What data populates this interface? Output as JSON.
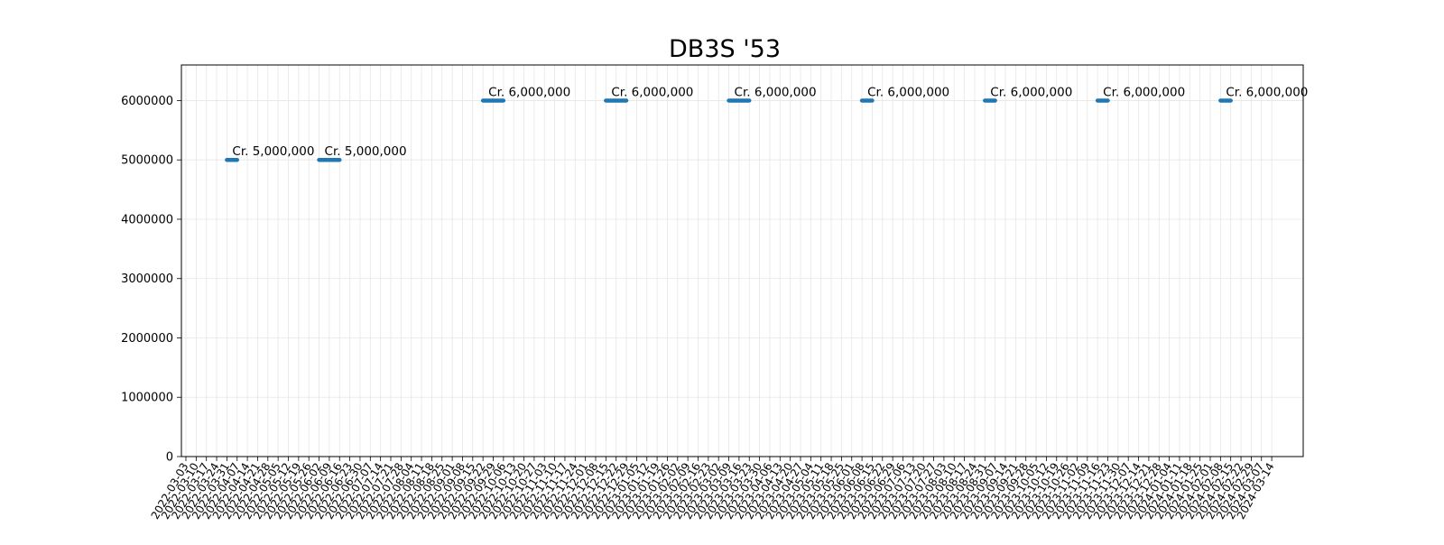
{
  "chart_data": {
    "type": "line",
    "title": "DB3S '53",
    "xlabel": "",
    "ylabel": "",
    "ylim": [
      0,
      6600000
    ],
    "y_ticks": [
      0,
      1000000,
      2000000,
      3000000,
      4000000,
      5000000,
      6000000
    ],
    "grid": true,
    "legend": "none",
    "series_color": "#1f77b4",
    "x_categories": [
      "2022-03-03",
      "2022-03-10",
      "2022-03-17",
      "2022-03-24",
      "2022-03-31",
      "2022-04-07",
      "2022-04-14",
      "2022-04-21",
      "2022-04-28",
      "2022-05-05",
      "2022-05-12",
      "2022-05-19",
      "2022-05-26",
      "2022-06-02",
      "2022-06-09",
      "2022-06-16",
      "2022-06-23",
      "2022-06-30",
      "2022-07-07",
      "2022-07-14",
      "2022-07-21",
      "2022-07-28",
      "2022-08-04",
      "2022-08-11",
      "2022-08-18",
      "2022-08-25",
      "2022-09-01",
      "2022-09-08",
      "2022-09-15",
      "2022-09-22",
      "2022-09-29",
      "2022-10-06",
      "2022-10-13",
      "2022-10-20",
      "2022-10-27",
      "2022-11-03",
      "2022-11-10",
      "2022-11-17",
      "2022-11-24",
      "2022-12-01",
      "2022-12-08",
      "2022-12-15",
      "2022-12-22",
      "2022-12-29",
      "2023-01-05",
      "2023-01-12",
      "2023-01-19",
      "2023-01-26",
      "2023-02-02",
      "2023-02-09",
      "2023-02-16",
      "2023-02-23",
      "2023-03-02",
      "2023-03-09",
      "2023-03-16",
      "2023-03-23",
      "2023-03-30",
      "2023-04-06",
      "2023-04-13",
      "2023-04-20",
      "2023-04-27",
      "2023-05-04",
      "2023-05-11",
      "2023-05-18",
      "2023-05-25",
      "2023-06-01",
      "2023-06-08",
      "2023-06-15",
      "2023-06-22",
      "2023-06-29",
      "2023-07-06",
      "2023-07-13",
      "2023-07-20",
      "2023-07-27",
      "2023-08-03",
      "2023-08-10",
      "2023-08-17",
      "2023-08-24",
      "2023-08-31",
      "2023-09-07",
      "2023-09-14",
      "2023-09-21",
      "2023-09-28",
      "2023-10-05",
      "2023-10-12",
      "2023-10-19",
      "2023-10-26",
      "2023-11-02",
      "2023-11-09",
      "2023-11-16",
      "2023-11-23",
      "2023-11-30",
      "2023-12-07",
      "2023-12-14",
      "2023-12-21",
      "2023-12-28",
      "2024-01-04",
      "2024-01-11",
      "2024-01-18",
      "2024-01-25",
      "2024-02-01",
      "2024-02-08",
      "2024-02-15",
      "2024-02-22",
      "2024-02-29",
      "2024-03-07",
      "2024-03-14"
    ],
    "segments": [
      {
        "x_start": "2022-03-31",
        "x_end": "2022-04-07",
        "y": 5000000,
        "label": "Cr. 5,000,000"
      },
      {
        "x_start": "2022-06-02",
        "x_end": "2022-06-16",
        "y": 5000000,
        "label": "Cr. 5,000,000"
      },
      {
        "x_start": "2022-09-22",
        "x_end": "2022-10-06",
        "y": 6000000,
        "label": "Cr. 6,000,000"
      },
      {
        "x_start": "2022-12-15",
        "x_end": "2022-12-29",
        "y": 6000000,
        "label": "Cr. 6,000,000"
      },
      {
        "x_start": "2023-03-09",
        "x_end": "2023-03-23",
        "y": 6000000,
        "label": "Cr. 6,000,000"
      },
      {
        "x_start": "2023-06-08",
        "x_end": "2023-06-15",
        "y": 6000000,
        "label": "Cr. 6,000,000"
      },
      {
        "x_start": "2023-08-31",
        "x_end": "2023-09-07",
        "y": 6000000,
        "label": "Cr. 6,000,000"
      },
      {
        "x_start": "2023-11-16",
        "x_end": "2023-11-23",
        "y": 6000000,
        "label": "Cr. 6,000,000"
      },
      {
        "x_start": "2024-02-08",
        "x_end": "2024-02-15",
        "y": 6000000,
        "label": "Cr. 6,000,000"
      }
    ]
  }
}
